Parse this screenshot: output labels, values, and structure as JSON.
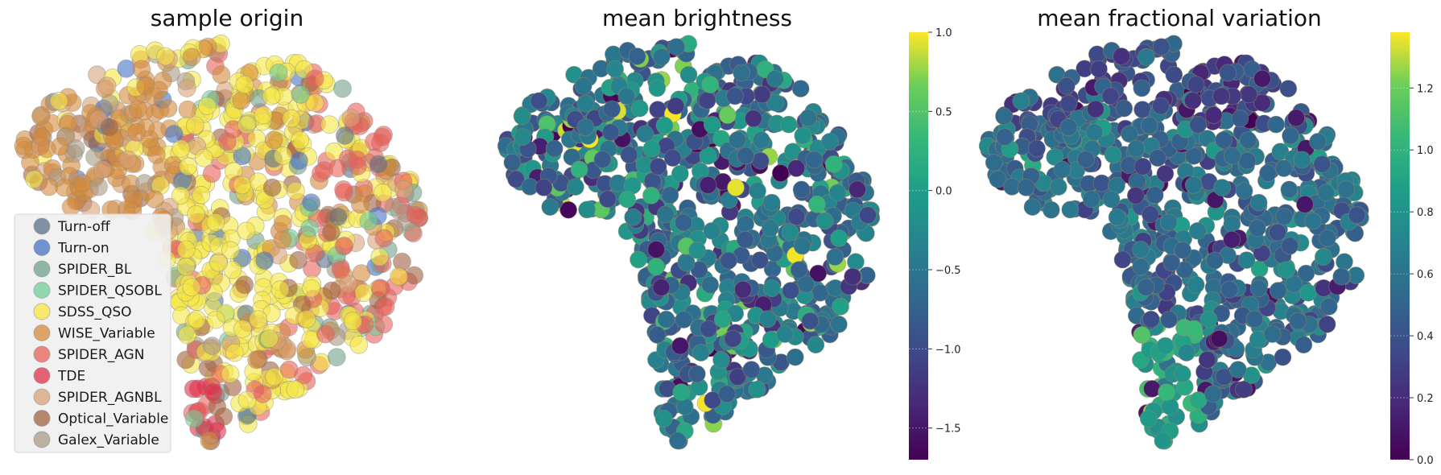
{
  "chart_data": [
    {
      "type": "scatter",
      "title": "sample origin",
      "legend_position": "lower-left",
      "series": [
        {
          "name": "Turn-off",
          "color": "#5a7088"
        },
        {
          "name": "Turn-on",
          "color": "#4472c4"
        },
        {
          "name": "SPIDER_BL",
          "color": "#6fa08a"
        },
        {
          "name": "SPIDER_QSOBL",
          "color": "#6fcf97"
        },
        {
          "name": "SDSS_QSO",
          "color": "#f5e642"
        },
        {
          "name": "WISE_Variable",
          "color": "#d48a3c"
        },
        {
          "name": "SPIDER_AGN",
          "color": "#e8605a"
        },
        {
          "name": "TDE",
          "color": "#e0304a"
        },
        {
          "name": "SPIDER_AGNBL",
          "color": "#d9a27a"
        },
        {
          "name": "Optical_Variable",
          "color": "#a0603f"
        },
        {
          "name": "Galex_Variable",
          "color": "#a89a85"
        }
      ]
    },
    {
      "type": "scatter",
      "title": "mean brightness",
      "colormap": "viridis",
      "colorbar": {
        "min": -1.7,
        "max": 1.0,
        "ticks": [
          1.0,
          0.5,
          0.0,
          -0.5,
          -1.0,
          -1.5
        ],
        "tick_labels": [
          "1.0",
          "0.5",
          "0.0",
          "−0.5",
          "−1.0",
          "−1.5"
        ]
      }
    },
    {
      "type": "scatter",
      "title": "mean fractional variation",
      "colormap": "viridis",
      "colorbar": {
        "min": 0.0,
        "max": 1.38,
        "ticks": [
          1.2,
          1.0,
          0.8,
          0.6,
          0.4,
          0.2,
          0.0
        ],
        "tick_labels": [
          "1.2",
          "1.0",
          "0.8",
          "0.6",
          "0.4",
          "0.2",
          "0.0"
        ]
      }
    }
  ]
}
